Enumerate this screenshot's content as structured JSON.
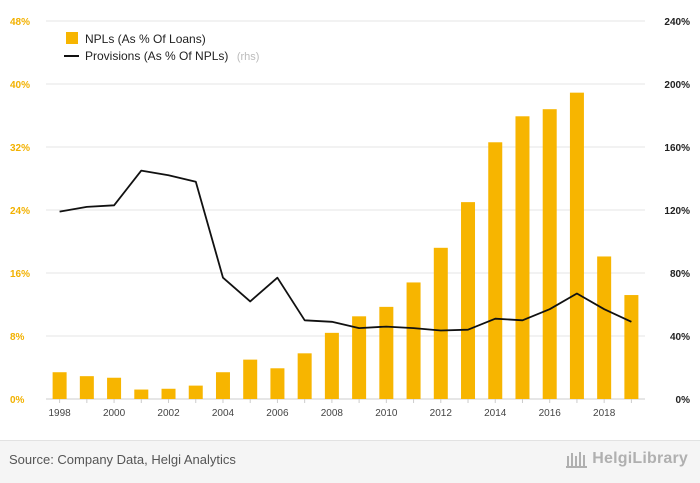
{
  "chart_data": {
    "type": "bar+line",
    "categories": [
      "1998",
      "1999",
      "2000",
      "2001",
      "2002",
      "2003",
      "2004",
      "2005",
      "2006",
      "2007",
      "2008",
      "2009",
      "2010",
      "2011",
      "2012",
      "2013",
      "2014",
      "2015",
      "2016",
      "2017",
      "2018",
      "2019"
    ],
    "series": [
      {
        "name": "NPLs (As % Of Loans)",
        "type": "bar",
        "axis": "left",
        "color": "#f7b500",
        "values": [
          3.4,
          2.9,
          2.7,
          1.2,
          1.3,
          1.7,
          3.4,
          5.0,
          3.9,
          5.8,
          8.4,
          10.5,
          11.7,
          14.8,
          19.2,
          25.0,
          32.6,
          35.9,
          36.8,
          38.9,
          18.1,
          13.2
        ]
      },
      {
        "name": "Provisions (As % Of NPLs)",
        "name_suffix": "(rhs)",
        "type": "line",
        "axis": "right",
        "color": "#111111",
        "values": [
          119,
          122,
          123,
          145,
          142,
          138,
          77,
          62,
          77,
          50,
          49,
          45,
          46,
          45,
          43.5,
          44,
          51,
          50,
          57,
          67,
          57,
          49
        ]
      }
    ],
    "y_left": {
      "min": 0,
      "max": 48,
      "ticks": [
        "0%",
        "8%",
        "16%",
        "24%",
        "32%",
        "40%",
        "48%"
      ]
    },
    "y_right": {
      "min": 0,
      "max": 240,
      "ticks": [
        "0%",
        "40%",
        "80%",
        "120%",
        "160%",
        "200%",
        "240%"
      ]
    },
    "x_tick_labels": [
      "1998",
      "2000",
      "2002",
      "2004",
      "2006",
      "2008",
      "2010",
      "2012",
      "2014",
      "2016",
      "2018"
    ],
    "grid": true,
    "legend_position": "top-left"
  },
  "footer": {
    "source": "Source: Company Data, Helgi Analytics",
    "brand": "HelgiLibrary"
  }
}
